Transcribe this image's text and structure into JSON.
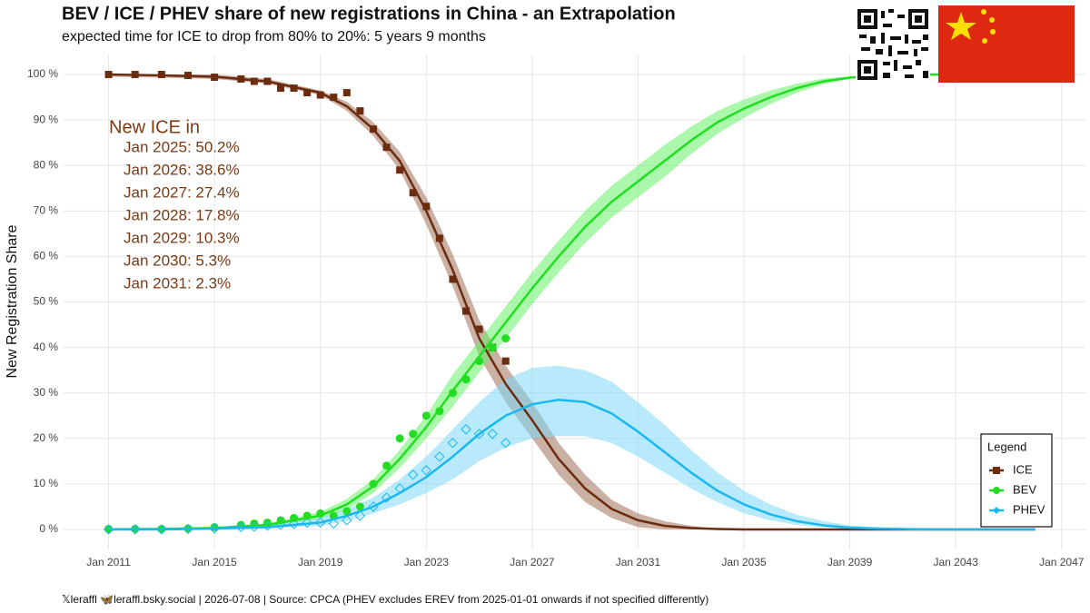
{
  "chart_data": {
    "type": "line",
    "title": "BEV / ICE / PHEV share of new registrations in China - an Extrapolation",
    "subtitle": "expected time for ICE to drop from 80% to 20%: 5 years 9 months",
    "y_label": "New Registration Share",
    "annotation": {
      "title": "New ICE in",
      "lines": [
        "Jan 2025: 50.2%",
        "Jan 2026: 38.6%",
        "Jan 2027: 27.4%",
        "Jan 2028: 17.8%",
        "Jan 2029: 10.3%",
        "Jan 2030: 5.3%",
        "Jan 2031: 2.3%"
      ]
    },
    "footer": "𝕏leraffl  🦋leraffl.bsky.social  | 2026-07-08   | Source: CPCA (PHEV excludes EREV from 2025-01-01   onwards if not specified differently)",
    "legend_title": "Legend",
    "legend_position": "bottom-right",
    "grid": true,
    "xlim": [
      2009.3,
      2047.9
    ],
    "ylim": [
      -4.4,
      104.4
    ],
    "xticks": [
      {
        "value": 2011,
        "label": "Jan 2011"
      },
      {
        "value": 2015,
        "label": "Jan 2015"
      },
      {
        "value": 2019,
        "label": "Jan 2019"
      },
      {
        "value": 2023,
        "label": "Jan 2023"
      },
      {
        "value": 2027,
        "label": "Jan 2027"
      },
      {
        "value": 2031,
        "label": "Jan 2031"
      },
      {
        "value": 2035,
        "label": "Jan 2035"
      },
      {
        "value": 2039,
        "label": "Jan 2039"
      },
      {
        "value": 2043,
        "label": "Jan 2043"
      },
      {
        "value": 2047,
        "label": "Jan 2047"
      }
    ],
    "yticks": [
      {
        "value": 0,
        "label": "0 %"
      },
      {
        "value": 10,
        "label": "10 %"
      },
      {
        "value": 20,
        "label": "20 %"
      },
      {
        "value": 30,
        "label": "30 %"
      },
      {
        "value": 40,
        "label": "40 %"
      },
      {
        "value": 50,
        "label": "50 %"
      },
      {
        "value": 60,
        "label": "60 %"
      },
      {
        "value": 70,
        "label": "70 %"
      },
      {
        "value": 80,
        "label": "80 %"
      },
      {
        "value": 90,
        "label": "90 %"
      },
      {
        "value": 100,
        "label": "100 %"
      }
    ],
    "x": [
      2011,
      2013,
      2015,
      2017,
      2019,
      2020,
      2021,
      2022,
      2023,
      2024,
      2025,
      2026,
      2027,
      2028,
      2029,
      2030,
      2031,
      2032,
      2033,
      2034,
      2035,
      2036,
      2037,
      2038,
      2039,
      2040,
      2041,
      2042,
      2044,
      2046
    ],
    "obs_x": [
      2011,
      2012,
      2013,
      2014,
      2015,
      2016,
      2016.5,
      2017,
      2017.5,
      2018,
      2018.5,
      2019,
      2019.5,
      2020,
      2020.5,
      2021,
      2021.5,
      2022,
      2022.5,
      2023,
      2023.5,
      2024,
      2024.5,
      2025,
      2025.5,
      2026
    ],
    "series": [
      {
        "name": "ICE",
        "color": "#6b2c0f",
        "band_color": "#a0705a",
        "marker": "square",
        "values": [
          100,
          99.8,
          99.5,
          98.5,
          96,
          93,
          88,
          81,
          70,
          57,
          42,
          32,
          24,
          15.5,
          9,
          4.5,
          2,
          0.8,
          0.3,
          0.1,
          0,
          0,
          0,
          0,
          0,
          0,
          0,
          0,
          0,
          0
        ],
        "lower": [
          99.5,
          99.3,
          99,
          98,
          95.5,
          92,
          86.5,
          79,
          67,
          53.5,
          38,
          28,
          20,
          12,
          6,
          2.5,
          0.5,
          0,
          0,
          0,
          0,
          0,
          0,
          0,
          0,
          0,
          0,
          0,
          0,
          0
        ],
        "upper": [
          100,
          100,
          100,
          99,
          96.5,
          94,
          89.5,
          83,
          73,
          60.5,
          46,
          36,
          28,
          19,
          12,
          6.5,
          3.5,
          1.8,
          0.8,
          0.1,
          0,
          0,
          0,
          0,
          0,
          0,
          0,
          0,
          0,
          0
        ],
        "obs_values": [
          100,
          100,
          100,
          99.8,
          99.4,
          99,
          98.5,
          98.5,
          97,
          97,
          96,
          95.5,
          95,
          96,
          92,
          88,
          84,
          79,
          74,
          71,
          64,
          55,
          48,
          44,
          40,
          37
        ]
      },
      {
        "name": "BEV",
        "color": "#22dd22",
        "band_color": "#66f066",
        "marker": "circle",
        "values": [
          0,
          0.1,
          0.3,
          1,
          3,
          5.5,
          9.5,
          15.5,
          22.5,
          30.5,
          38,
          45.5,
          53,
          60,
          66.5,
          72,
          76.5,
          81,
          85.5,
          89.5,
          92.5,
          95,
          97,
          98.5,
          99.3,
          99.7,
          99.9,
          100,
          100,
          100
        ],
        "lower": [
          0,
          0,
          0,
          0.7,
          2.2,
          4.3,
          8,
          13.5,
          20,
          27,
          34.5,
          42,
          49.5,
          56.5,
          63,
          68.5,
          73,
          77.5,
          82.5,
          87,
          90.5,
          93.5,
          96,
          97.9,
          99,
          99.7,
          99.9,
          100,
          100,
          100
        ],
        "upper": [
          0.3,
          0.4,
          0.6,
          1.3,
          3.8,
          6.7,
          11,
          17.5,
          25,
          34,
          41.5,
          49,
          56.5,
          63.5,
          70,
          75.5,
          80,
          84.5,
          88.5,
          92,
          94.5,
          96.5,
          98,
          99.1,
          99.6,
          99.7,
          99.9,
          100,
          100,
          100
        ],
        "obs_values": [
          0.1,
          0.1,
          0.1,
          0.2,
          0.5,
          1,
          1.3,
          1.5,
          2,
          2.5,
          3,
          3.5,
          3,
          4,
          5,
          10,
          14,
          20,
          21,
          25,
          26,
          30,
          33,
          37,
          40,
          42
        ]
      },
      {
        "name": "PHEV",
        "color": "#1ab8f0",
        "band_color": "#7dd8f7",
        "marker": "diamond",
        "values": [
          0,
          0,
          0.2,
          0.5,
          1.5,
          3,
          5,
          8,
          11.5,
          16,
          21,
          25,
          27.5,
          28.5,
          28,
          25.5,
          21.5,
          17,
          12.5,
          8.5,
          5.5,
          3.3,
          1.8,
          0.9,
          0.4,
          0.2,
          0.1,
          0,
          0,
          0
        ],
        "lower": [
          0,
          0,
          0.1,
          0.2,
          0.8,
          1.8,
          3.5,
          5.5,
          8,
          11,
          15,
          18,
          20,
          20.5,
          20.5,
          19,
          16,
          12.5,
          9,
          6,
          3.5,
          2,
          1,
          0.5,
          0.2,
          0.1,
          0,
          0,
          0,
          0
        ],
        "upper": [
          0,
          0.1,
          0.4,
          0.9,
          2.5,
          4.5,
          7,
          11,
          16,
          22,
          28,
          33,
          35.5,
          36,
          35,
          32.5,
          28,
          23,
          17.5,
          12.5,
          8.5,
          5.5,
          3.2,
          1.8,
          0.9,
          0.5,
          0.3,
          0.1,
          0,
          0
        ],
        "obs_values": [
          0,
          0,
          0,
          0.1,
          0.2,
          0.5,
          0.6,
          0.8,
          1,
          1.2,
          1.5,
          1.5,
          1.3,
          2,
          3,
          5,
          7,
          9,
          12,
          13,
          16,
          19,
          22,
          21,
          21,
          19
        ]
      }
    ]
  }
}
